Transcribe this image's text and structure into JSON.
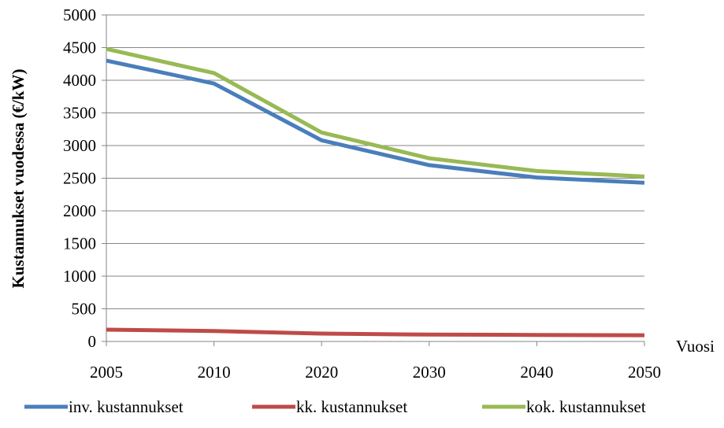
{
  "chart_data": {
    "type": "line",
    "title": "",
    "xlabel": "Vuosi",
    "ylabel": "Kustannukset vuodessa (€/kW)",
    "categories": [
      "2005",
      "2010",
      "2020",
      "2030",
      "2040",
      "2050"
    ],
    "ylim": [
      0,
      5000
    ],
    "yticks": [
      "0",
      "500",
      "1000",
      "1500",
      "2000",
      "2500",
      "3000",
      "3500",
      "4000",
      "4500",
      "5000"
    ],
    "grid": true,
    "legend_position": "bottom",
    "series": [
      {
        "name": "inv. kustannukset",
        "color": "#4a7ebb",
        "values": [
          4300,
          3950,
          3080,
          2700,
          2510,
          2430
        ]
      },
      {
        "name": "kk. kustannukset",
        "color": "#be4b48",
        "values": [
          180,
          160,
          120,
          105,
          100,
          95
        ]
      },
      {
        "name": "kok. kustannukset",
        "color": "#98b954",
        "values": [
          4480,
          4110,
          3200,
          2805,
          2610,
          2525
        ]
      }
    ]
  }
}
